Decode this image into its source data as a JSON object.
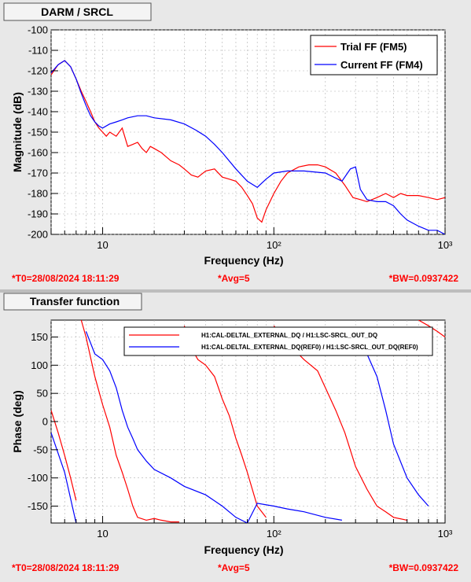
{
  "panels": [
    {
      "tab_title": "DARM / SRCL",
      "footer": {
        "t0": "*T0=28/08/2024 18:11:29",
        "avg": "*Avg=5",
        "bw": "*BW=0.0937422"
      }
    },
    {
      "tab_title": "Transfer function",
      "footer": {
        "t0": "*T0=28/08/2024 18:11:29",
        "avg": "*Avg=5",
        "bw": "*BW=0.0937422"
      }
    }
  ],
  "colors": {
    "trial": "#ff0000",
    "current": "#0000ff",
    "footer_text": "#ff0000",
    "panel_bg": "#e8e8e8"
  },
  "chart_data": [
    {
      "type": "line",
      "xlabel": "Frequency (Hz)",
      "ylabel": "Magnitude (dB)",
      "xscale": "log",
      "xlim": [
        5,
        1000
      ],
      "ylim": [
        -200,
        -100
      ],
      "xticks": [
        10,
        100,
        1000
      ],
      "xticklabels": [
        "10",
        "10²",
        "10³"
      ],
      "yticks": [
        -100,
        -110,
        -120,
        -130,
        -140,
        -150,
        -160,
        -170,
        -180,
        -190,
        -200
      ],
      "grid": true,
      "legend": "top-right",
      "series": [
        {
          "name": "Trial FF (FM5)",
          "color": "#ff0000",
          "x": [
            5,
            5.5,
            6,
            6.5,
            7,
            7.5,
            8,
            8.5,
            9,
            9.5,
            10,
            10.5,
            11,
            12,
            13,
            14,
            15,
            16,
            17,
            18,
            19,
            20,
            22,
            25,
            28,
            30,
            33,
            36,
            40,
            45,
            50,
            55,
            60,
            65,
            70,
            75,
            80,
            85,
            90,
            100,
            110,
            120,
            140,
            160,
            180,
            200,
            230,
            260,
            290,
            320,
            350,
            400,
            450,
            500,
            550,
            600,
            700,
            800,
            900,
            1000
          ],
          "y": [
            -122,
            -117,
            -115,
            -118,
            -124,
            -130,
            -135,
            -140,
            -145,
            -148,
            -150,
            -152,
            -150,
            -152,
            -148,
            -157,
            -156,
            -155,
            -158,
            -160,
            -157,
            -158,
            -160,
            -164,
            -166,
            -168,
            -171,
            -172,
            -169,
            -168,
            -172,
            -173,
            -174,
            -177,
            -181,
            -185,
            -192,
            -194,
            -188,
            -180,
            -174,
            -170,
            -167,
            -166,
            -166,
            -167,
            -170,
            -176,
            -182,
            -183,
            -184,
            -182,
            -180,
            -182,
            -180,
            -181,
            -181,
            -182,
            -183,
            -182
          ]
        },
        {
          "name": "Current FF (FM4)",
          "color": "#0000ff",
          "x": [
            5,
            5.5,
            6,
            6.5,
            7,
            7.5,
            8,
            8.5,
            9,
            9.5,
            10,
            11,
            12,
            13,
            14,
            16,
            18,
            20,
            25,
            30,
            35,
            40,
            45,
            50,
            60,
            70,
            80,
            90,
            100,
            120,
            150,
            200,
            250,
            280,
            300,
            320,
            350,
            400,
            450,
            500,
            550,
            600,
            700,
            800,
            900,
            1000
          ],
          "y": [
            -121,
            -117,
            -115,
            -118,
            -124,
            -131,
            -137,
            -142,
            -145,
            -147,
            -148,
            -146,
            -145,
            -144,
            -143,
            -142,
            -142,
            -143,
            -144,
            -146,
            -149,
            -152,
            -156,
            -160,
            -168,
            -174,
            -177,
            -173,
            -170,
            -169,
            -169,
            -170,
            -174,
            -168,
            -167,
            -178,
            -183,
            -184,
            -184,
            -186,
            -190,
            -193,
            -196,
            -198,
            -198,
            -200
          ]
        }
      ]
    },
    {
      "type": "line",
      "xlabel": "Frequency (Hz)",
      "ylabel": "Phase (deg)",
      "xscale": "log",
      "xlim": [
        5,
        1000
      ],
      "ylim": [
        -180,
        180
      ],
      "xticks": [
        10,
        100,
        1000
      ],
      "xticklabels": [
        "10",
        "10²",
        "10³"
      ],
      "yticks": [
        -150,
        -100,
        -50,
        0,
        50,
        100,
        150
      ],
      "grid": true,
      "legend": "top-right",
      "series": [
        {
          "name": "H1:CAL-DELTAL_EXTERNAL_DQ / H1:LSC-SRCL_OUT_DQ",
          "color": "#ff0000",
          "x": [
            5,
            5.5,
            6,
            6.5,
            7,
            7.5,
            8,
            9,
            10,
            11,
            12,
            13,
            14,
            15,
            16,
            18,
            20,
            22,
            25,
            28,
            30,
            33,
            36,
            40,
            45,
            50,
            55,
            60,
            65,
            70,
            80,
            90,
            100,
            120,
            150,
            180,
            200,
            230,
            260,
            300,
            350,
            400,
            450,
            500,
            600,
            700,
            800,
            900,
            1000
          ],
          "y": [
            20,
            -20,
            -60,
            -100,
            -140,
            180,
            150,
            80,
            30,
            -10,
            -60,
            -90,
            -120,
            -150,
            -170,
            -175,
            -172,
            -175,
            -178,
            -178,
            170,
            130,
            110,
            100,
            80,
            40,
            10,
            -30,
            -60,
            -90,
            -150,
            -170,
            170,
            140,
            110,
            90,
            60,
            20,
            -20,
            -80,
            -120,
            -150,
            -160,
            -170,
            -175,
            180,
            170,
            160,
            150
          ]
        },
        {
          "name": "H1:CAL-DELTAL_EXTERNAL_DQ(REF0) / H1:LSC-SRCL_OUT_DQ(REF0)",
          "color": "#0000ff",
          "x": [
            5,
            6,
            7,
            8,
            9,
            10,
            11,
            12,
            13,
            14,
            15,
            16,
            18,
            20,
            25,
            30,
            40,
            50,
            60,
            70,
            80,
            100,
            120,
            150,
            200,
            250,
            280,
            300,
            350,
            400,
            450,
            500,
            600,
            700,
            800
          ],
          "y": [
            -20,
            -90,
            -180,
            160,
            120,
            110,
            90,
            60,
            20,
            -10,
            -30,
            -50,
            -70,
            -85,
            -100,
            -115,
            -130,
            -150,
            -170,
            -180,
            -145,
            -150,
            -155,
            -160,
            -170,
            -175,
            150,
            140,
            120,
            80,
            20,
            -40,
            -100,
            -130,
            -150
          ]
        }
      ]
    }
  ]
}
